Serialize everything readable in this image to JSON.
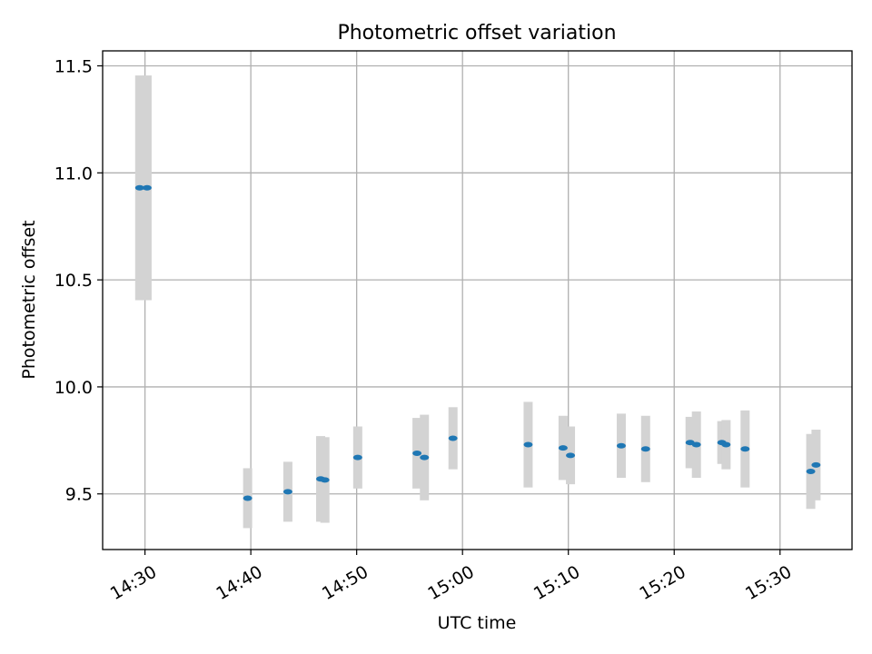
{
  "chart_data": {
    "type": "scatter",
    "title": "Photometric offset variation",
    "xlabel": "UTC time",
    "ylabel": "Photometric offset",
    "x_ticks": [
      "14:30",
      "14:40",
      "14:50",
      "15:00",
      "15:10",
      "15:20",
      "15:30"
    ],
    "x_tick_minutes": [
      870,
      880,
      890,
      900,
      910,
      920,
      930
    ],
    "y_ticks": [
      "9.5",
      "10.0",
      "10.5",
      "11.0",
      "11.5"
    ],
    "y_tick_values": [
      9.5,
      10.0,
      10.5,
      11.0,
      11.5
    ],
    "xlim": [
      "14:26",
      "15:36.8"
    ],
    "ylim": [
      9.24,
      11.57
    ],
    "grid": true,
    "colors": {
      "point": "#1f77b4",
      "errorbar": "#d3d3d3",
      "grid": "#b0b0b0"
    },
    "points": [
      {
        "time": "14:29.5",
        "y": 10.93,
        "err": 0.525
      },
      {
        "time": "14:30.2",
        "y": 10.93,
        "err": 0.525
      },
      {
        "time": "14:39.7",
        "y": 9.48,
        "err": 0.14
      },
      {
        "time": "14:43.5",
        "y": 9.51,
        "err": 0.14
      },
      {
        "time": "14:46.6",
        "y": 9.57,
        "err": 0.2
      },
      {
        "time": "14:47.0",
        "y": 9.565,
        "err": 0.2
      },
      {
        "time": "14:50.1",
        "y": 9.67,
        "err": 0.145
      },
      {
        "time": "14:55.7",
        "y": 9.69,
        "err": 0.165
      },
      {
        "time": "14:56.4",
        "y": 9.67,
        "err": 0.2
      },
      {
        "time": "14:59.1",
        "y": 9.76,
        "err": 0.145
      },
      {
        "time": "15:06.2",
        "y": 9.73,
        "err": 0.2
      },
      {
        "time": "15:09.5",
        "y": 9.715,
        "err": 0.15
      },
      {
        "time": "15:10.2",
        "y": 9.68,
        "err": 0.135
      },
      {
        "time": "15:15.0",
        "y": 9.725,
        "err": 0.15
      },
      {
        "time": "15:17.3",
        "y": 9.71,
        "err": 0.155
      },
      {
        "time": "15:21.5",
        "y": 9.74,
        "err": 0.12
      },
      {
        "time": "15:22.1",
        "y": 9.73,
        "err": 0.155
      },
      {
        "time": "15:24.5",
        "y": 9.74,
        "err": 0.1
      },
      {
        "time": "15:24.9",
        "y": 9.73,
        "err": 0.115
      },
      {
        "time": "15:26.7",
        "y": 9.71,
        "err": 0.18
      },
      {
        "time": "15:32.9",
        "y": 9.605,
        "err": 0.175
      },
      {
        "time": "15:33.4",
        "y": 9.635,
        "err": 0.165
      }
    ]
  }
}
